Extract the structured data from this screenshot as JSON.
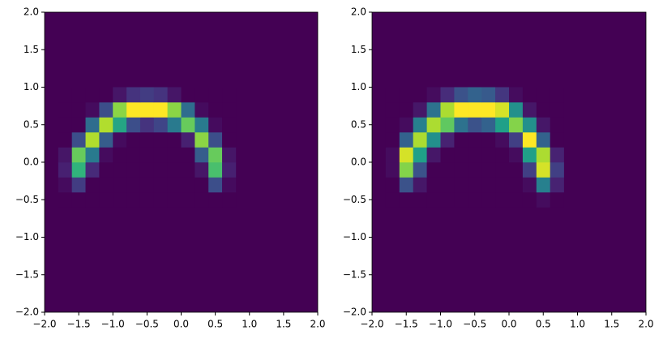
{
  "chart_data": [
    {
      "type": "hist2d",
      "cmap": "viridis",
      "xbins": [
        -1.8,
        -1.6,
        -1.4,
        -1.2,
        -1.0,
        -0.8,
        -0.6,
        -0.4,
        -0.2,
        0.0,
        0.2,
        0.4,
        0.6,
        0.8
      ],
      "ybins": [
        -0.6,
        -0.4,
        -0.2,
        0.0,
        0.2,
        0.4,
        0.6,
        0.8,
        1.0
      ],
      "z": [
        [
          0,
          0,
          0,
          0,
          0,
          0,
          0,
          0,
          0,
          0,
          0,
          0,
          0
        ],
        [
          1,
          6,
          0,
          0,
          0,
          0,
          0,
          0,
          0,
          0,
          0,
          8,
          1
        ],
        [
          3,
          22,
          4,
          0,
          0,
          0,
          0,
          0,
          0,
          0,
          2,
          24,
          3
        ],
        [
          2,
          26,
          14,
          1,
          0,
          0,
          0,
          0,
          0,
          0,
          10,
          26,
          2
        ],
        [
          0,
          8,
          30,
          10,
          1,
          0,
          0,
          0,
          0,
          3,
          28,
          8,
          0
        ],
        [
          0,
          0,
          12,
          30,
          20,
          8,
          5,
          7,
          14,
          26,
          14,
          1,
          0
        ],
        [
          0,
          0,
          1,
          8,
          28,
          34,
          34,
          34,
          28,
          12,
          1,
          0,
          0
        ],
        [
          0,
          0,
          0,
          0,
          2,
          5,
          6,
          5,
          2,
          0,
          0,
          0,
          0
        ]
      ],
      "xlim": [
        -2,
        2
      ],
      "ylim": [
        -2,
        2
      ],
      "xticks": [
        {
          "value": -2,
          "label": "−2.0"
        },
        {
          "value": -1.5,
          "label": "−1.5"
        },
        {
          "value": -1,
          "label": "−1.0"
        },
        {
          "value": -0.5,
          "label": "−0.5"
        },
        {
          "value": 0,
          "label": "0.0"
        },
        {
          "value": 0.5,
          "label": "0.5"
        },
        {
          "value": 1,
          "label": "1.0"
        },
        {
          "value": 1.5,
          "label": "1.5"
        },
        {
          "value": 2,
          "label": "2.0"
        }
      ],
      "yticks": [
        {
          "value": -2,
          "label": "−2.0"
        },
        {
          "value": -1.5,
          "label": "−1.5"
        },
        {
          "value": -1,
          "label": "−1.0"
        },
        {
          "value": -0.5,
          "label": "−0.5"
        },
        {
          "value": 0,
          "label": "0.0"
        },
        {
          "value": 0.5,
          "label": "0.5"
        },
        {
          "value": 1,
          "label": "1.0"
        },
        {
          "value": 1.5,
          "label": "1.5"
        },
        {
          "value": 2,
          "label": "2.0"
        }
      ]
    },
    {
      "type": "hist2d",
      "cmap": "viridis",
      "xbins": [
        -1.8,
        -1.6,
        -1.4,
        -1.2,
        -1.0,
        -0.8,
        -0.6,
        -0.4,
        -0.2,
        0.0,
        0.2,
        0.4,
        0.6,
        0.8
      ],
      "ybins": [
        -0.6,
        -0.4,
        -0.2,
        0.0,
        0.2,
        0.4,
        0.6,
        0.8,
        1.0
      ],
      "z": [
        [
          0,
          0,
          0,
          0,
          0,
          0,
          0,
          0,
          0,
          0,
          0,
          1,
          0
        ],
        [
          0,
          8,
          2,
          0,
          0,
          0,
          0,
          0,
          0,
          0,
          1,
          14,
          3
        ],
        [
          1,
          26,
          8,
          0,
          0,
          0,
          0,
          0,
          0,
          0,
          6,
          30,
          6
        ],
        [
          1,
          30,
          18,
          2,
          0,
          0,
          0,
          0,
          0,
          1,
          18,
          28,
          3
        ],
        [
          0,
          10,
          28,
          16,
          3,
          0,
          0,
          0,
          1,
          6,
          32,
          10,
          0
        ],
        [
          0,
          1,
          14,
          28,
          24,
          12,
          8,
          10,
          18,
          26,
          16,
          2,
          0
        ],
        [
          0,
          0,
          2,
          12,
          28,
          32,
          32,
          32,
          30,
          16,
          2,
          0,
          0
        ],
        [
          0,
          0,
          0,
          1,
          4,
          8,
          10,
          9,
          5,
          1,
          0,
          0,
          0
        ]
      ],
      "xlim": [
        -2,
        2
      ],
      "ylim": [
        -2,
        2
      ],
      "xticks": [
        {
          "value": -2,
          "label": "−2.0"
        },
        {
          "value": -1.5,
          "label": "−1.5"
        },
        {
          "value": -1,
          "label": "−1.0"
        },
        {
          "value": -0.5,
          "label": "−0.5"
        },
        {
          "value": 0,
          "label": "0.0"
        },
        {
          "value": 0.5,
          "label": "0.5"
        },
        {
          "value": 1,
          "label": "1.0"
        },
        {
          "value": 1.5,
          "label": "1.5"
        },
        {
          "value": 2,
          "label": "2.0"
        }
      ],
      "yticks": [
        {
          "value": -2,
          "label": "−2.0"
        },
        {
          "value": -1.5,
          "label": "−1.5"
        },
        {
          "value": -1,
          "label": "−1.0"
        },
        {
          "value": -0.5,
          "label": "−0.5"
        },
        {
          "value": 0,
          "label": "0.0"
        },
        {
          "value": 0.5,
          "label": "0.5"
        },
        {
          "value": 1,
          "label": "1.0"
        },
        {
          "value": 1.5,
          "label": "1.5"
        },
        {
          "value": 2,
          "label": "2.0"
        }
      ]
    }
  ]
}
